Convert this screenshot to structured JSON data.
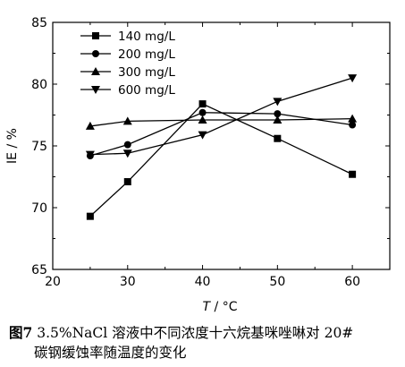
{
  "colors": {
    "ink": "#000000",
    "background": "#ffffff"
  },
  "axes": {
    "ylabel": "IE / %",
    "xlabel_italic": "T",
    "xlabel_rest": " / °C"
  },
  "caption": {
    "figure_number": "图7",
    "line1": " 3.5%NaCl 溶液中不同浓度十六烷基咪唑啉对 20#",
    "line2": "碳钢缓蚀率随温度的变化"
  },
  "chart_data": {
    "type": "line",
    "xlim": [
      20,
      65
    ],
    "ylim": [
      65,
      85
    ],
    "xticks": [
      20,
      30,
      40,
      50,
      60
    ],
    "yticks": [
      65,
      70,
      75,
      80,
      85
    ],
    "xlabel": "T / °C",
    "ylabel": "IE / %",
    "grid": false,
    "legend_position": "top-left",
    "x": [
      25,
      30,
      40,
      50,
      60
    ],
    "series": [
      {
        "name": "140 mg/L",
        "marker": "square",
        "values": [
          69.3,
          72.1,
          78.4,
          75.6,
          72.7
        ]
      },
      {
        "name": "200 mg/L",
        "marker": "circle",
        "values": [
          74.2,
          75.1,
          77.7,
          77.6,
          76.7
        ]
      },
      {
        "name": "300 mg/L",
        "marker": "triangle-up",
        "values": [
          76.6,
          77.0,
          77.1,
          77.1,
          77.2
        ]
      },
      {
        "name": "600 mg/L",
        "marker": "triangle-down",
        "values": [
          74.3,
          74.4,
          75.9,
          78.6,
          80.5
        ]
      }
    ]
  }
}
